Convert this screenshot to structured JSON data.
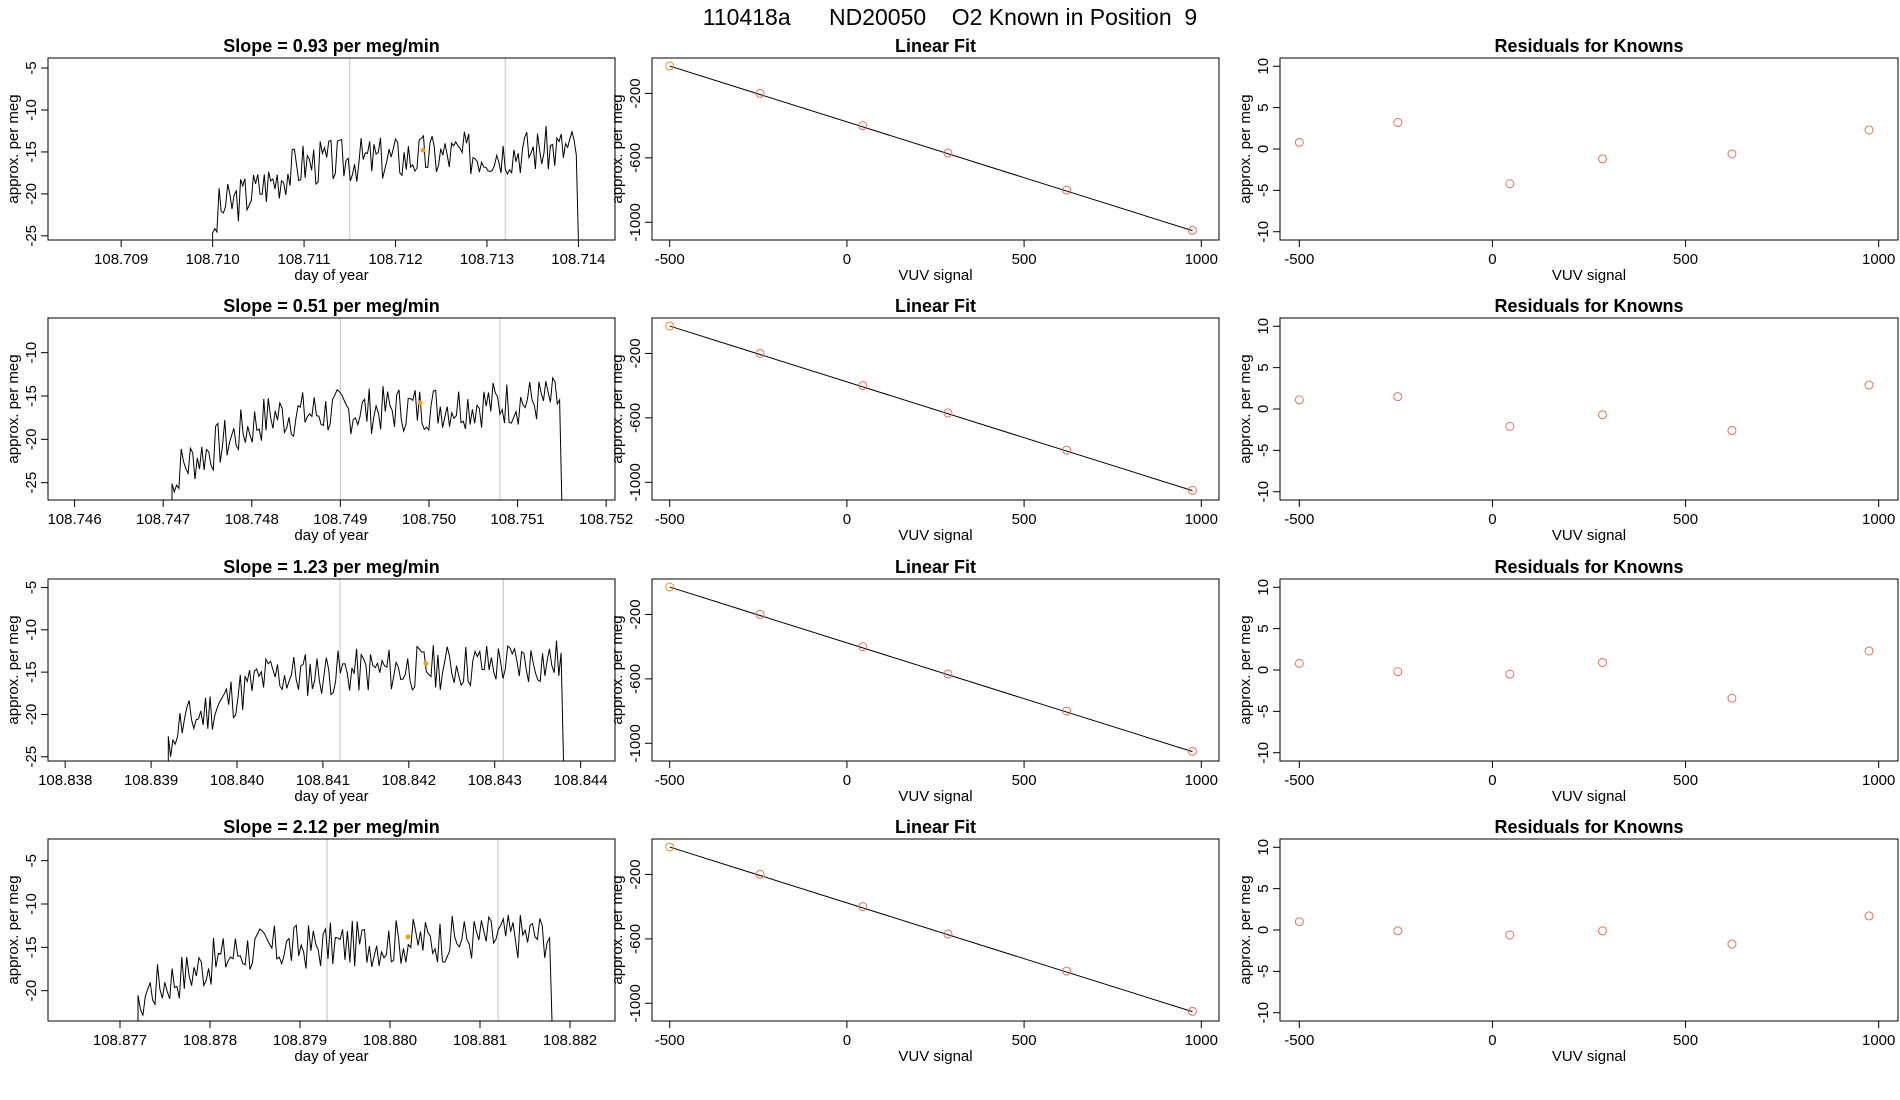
{
  "title": "110418a      ND20050    O2 Known in Position  9",
  "colors": {
    "line": "#000000",
    "marker": "#e07060",
    "first_marker": "#e09020",
    "highlight": "#f0a020",
    "guide": "#cccccc"
  },
  "fit_x": [
    -500,
    -245,
    45,
    285,
    620,
    975
  ],
  "fit_ticks_x": [
    -500,
    0,
    500,
    1000
  ],
  "fit_ticks_y": [
    -200,
    -600,
    -1000
  ],
  "fit_xlim": [
    -550,
    1050
  ],
  "fit_ylim": [
    -1110,
    20
  ],
  "res_ticks_y": [
    10,
    5,
    0,
    -5,
    -10
  ],
  "rows": [
    {
      "slope_title": "Slope =  0.93  per meg/min",
      "trace": {
        "xlabel": "day of year",
        "ylabel": "approx. per meg",
        "xlim": [
          108.7082,
          108.7144
        ],
        "ylim": [
          -25.5,
          -3.8
        ],
        "xticks": [
          "108.709",
          "108.710",
          "108.711",
          "108.712",
          "108.713",
          "108.714"
        ],
        "yticks": [
          -5,
          -10,
          -15,
          -20,
          -25
        ],
        "start": 108.71,
        "end": 108.714,
        "guides": [
          108.7115,
          108.7132
        ],
        "highlight": [
          108.7123,
          -14.8
        ],
        "seed": 3
      },
      "fit": {
        "title": "Linear Fit",
        "xlabel": "VUV signal",
        "ylabel": "approx. per meg",
        "y": [
          -30,
          -200,
          -400,
          -570,
          -800,
          -1050
        ],
        "line": [
          -30,
          -1052
        ]
      },
      "residuals": {
        "title": "Residuals for Knowns",
        "xlabel": "VUV signal",
        "ylabel": "approx. per meg",
        "y": [
          0.8,
          3.2,
          -4.2,
          -1.2,
          -0.6,
          2.3
        ]
      }
    },
    {
      "slope_title": "Slope =  0.51  per meg/min",
      "trace": {
        "xlabel": "day of year",
        "ylabel": "approx. per meg",
        "xlim": [
          108.7457,
          108.7521
        ],
        "ylim": [
          -27,
          -6
        ],
        "xticks": [
          "108.746",
          "108.747",
          "108.748",
          "108.749",
          "108.750",
          "108.751",
          "108.752"
        ],
        "yticks": [
          -10,
          -15,
          -20,
          -25
        ],
        "start": 108.7471,
        "end": 108.7515,
        "guides": [
          108.749,
          108.7508
        ],
        "highlight": [
          108.7499,
          -15.8
        ],
        "seed": 7
      },
      "fit": {
        "title": "Linear Fit",
        "xlabel": "VUV signal",
        "ylabel": "approx. per meg",
        "y": [
          -30,
          -200,
          -400,
          -570,
          -800,
          -1050
        ],
        "line": [
          -30,
          -1052
        ]
      },
      "residuals": {
        "title": "Residuals for Knowns",
        "xlabel": "VUV signal",
        "ylabel": "approx. per meg",
        "y": [
          1.1,
          1.5,
          -2.1,
          -0.7,
          -2.6,
          2.9
        ]
      }
    },
    {
      "slope_title": "Slope =  1.23  per meg/min",
      "trace": {
        "xlabel": "day of year",
        "ylabel": "approx. per meg",
        "xlim": [
          108.8378,
          108.8444
        ],
        "ylim": [
          -25.5,
          -4
        ],
        "xticks": [
          "108.838",
          "108.839",
          "108.840",
          "108.841",
          "108.842",
          "108.843",
          "108.844"
        ],
        "yticks": [
          -5,
          -10,
          -15,
          -20,
          -25
        ],
        "start": 108.8392,
        "end": 108.8438,
        "guides": [
          108.8412,
          108.8431
        ],
        "highlight": [
          108.8422,
          -14.0
        ],
        "seed": 11
      },
      "fit": {
        "title": "Linear Fit",
        "xlabel": "VUV signal",
        "ylabel": "approx. per meg",
        "y": [
          -30,
          -200,
          -400,
          -570,
          -800,
          -1050
        ],
        "line": [
          -30,
          -1052
        ]
      },
      "residuals": {
        "title": "Residuals for Knowns",
        "xlabel": "VUV signal",
        "ylabel": "approx. per meg",
        "y": [
          0.8,
          -0.2,
          -0.5,
          0.9,
          -3.4,
          2.3
        ]
      }
    },
    {
      "slope_title": "Slope =  2.12  per meg/min",
      "trace": {
        "xlabel": "day of year",
        "ylabel": "approx. per meg",
        "xlim": [
          108.8762,
          108.8825
        ],
        "ylim": [
          -23.5,
          -2.5
        ],
        "xticks": [
          "108.877",
          "108.878",
          "108.879",
          "108.880",
          "108.881",
          "108.882"
        ],
        "yticks": [
          -5,
          -10,
          -15,
          -20
        ],
        "start": 108.8772,
        "end": 108.8818,
        "guides": [
          108.8793,
          108.8812
        ],
        "highlight": [
          108.8802,
          -13.8
        ],
        "seed": 17
      },
      "fit": {
        "title": "Linear Fit",
        "xlabel": "VUV signal",
        "ylabel": "approx. per meg",
        "y": [
          -30,
          -200,
          -400,
          -570,
          -800,
          -1050
        ],
        "line": [
          -30,
          -1052
        ]
      },
      "residuals": {
        "title": "Residuals for Knowns",
        "xlabel": "VUV signal",
        "ylabel": "approx. per meg",
        "y": [
          1.0,
          -0.1,
          -0.6,
          -0.1,
          -1.7,
          1.7
        ]
      }
    }
  ]
}
